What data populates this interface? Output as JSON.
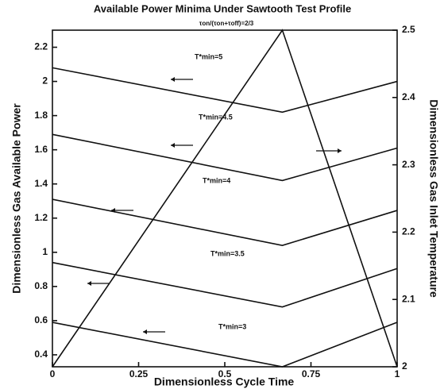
{
  "chart_data": {
    "type": "line",
    "title": "Available Power Minima Under Sawtooth Test Profile",
    "annotation": "τon/(τon+τoff)=2/3",
    "x_label": "Dimensionless Cycle Time",
    "y_label": "Dimensionless Gas Available Power",
    "y2_label": "Dimensionless Gas Inlet Temperature",
    "x": [
      0,
      0.667,
      1
    ],
    "xlim": [
      0,
      1
    ],
    "xticks": [
      0,
      0.25,
      0.5,
      0.75,
      1
    ],
    "ylim": [
      0.33,
      2.3
    ],
    "yticks": [
      0.4,
      0.6,
      0.8,
      1,
      1.2,
      1.4,
      1.6,
      1.8,
      2,
      2.2
    ],
    "y2lim": [
      2,
      2.5
    ],
    "y2ticks": [
      2,
      2.1,
      2.2,
      2.3,
      2.4,
      2.5
    ],
    "color": "#111111",
    "series": [
      {
        "name": "T*min=5",
        "values": [
          2.08,
          1.82,
          2.0
        ]
      },
      {
        "name": "T*min=4.5",
        "values": [
          1.69,
          1.42,
          1.61
        ]
      },
      {
        "name": "T*min=4",
        "values": [
          1.31,
          1.04,
          1.245
        ]
      },
      {
        "name": "T*min=3.5",
        "values": [
          0.94,
          0.68,
          0.905
        ]
      },
      {
        "name": "T*min=3",
        "values": [
          0.59,
          0.33,
          0.59
        ]
      },
      {
        "axis": "y2",
        "values": [
          2,
          2.5,
          2
        ]
      }
    ]
  }
}
